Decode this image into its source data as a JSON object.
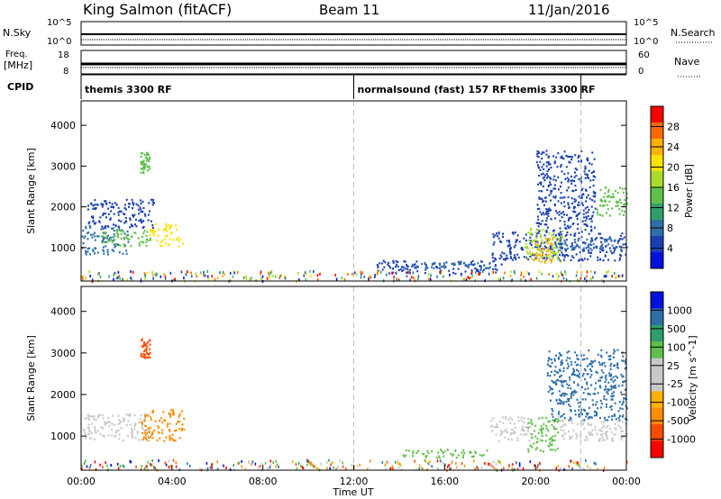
{
  "header": {
    "station": "King Salmon (fitACF)",
    "beam": "Beam 11",
    "date": "11/Jan/2016"
  },
  "aux_panels": {
    "nsky_label": "N.Sky",
    "nsky_ticks": [
      "10^5",
      "10^0"
    ],
    "nsearch_label": "N.Search",
    "nsearch_ticks": [
      "10^5",
      "10^0"
    ],
    "freq_label": "Freq.",
    "freq_unit": "[MHz]",
    "freq_ticks": [
      "18",
      "8"
    ],
    "nave_label": "Nave",
    "nave_ticks": [
      "60",
      "0"
    ],
    "cpid_label": "CPID",
    "cpid_segments": [
      {
        "start": 0,
        "end": 12,
        "label": "themis 3300 RF"
      },
      {
        "start": 12,
        "end": 22,
        "label": "normalsound (fast) 157 RF"
      },
      {
        "start": 22,
        "end": 24,
        "label": ""
      }
    ],
    "cpid_extra_label": {
      "x_hour": 18.8,
      "label": "themis 3300 RF"
    }
  },
  "chart_data": [
    {
      "type": "heatmap",
      "panel": "power",
      "xlabel": "",
      "ylabel": "Slant Range [km]",
      "xlim": [
        0,
        24
      ],
      "ylim": [
        180,
        4600
      ],
      "y_ticks": [
        1000,
        2000,
        3000,
        4000
      ],
      "colorbar_label": "Power [dB]",
      "colorbar_ticks": [
        "28",
        "24",
        "20",
        "16",
        "12",
        "8",
        "4"
      ],
      "colorbar_colors": [
        "#ff0000",
        "#ff6a00",
        "#ffb000",
        "#ffe200",
        "#a8dc2c",
        "#5fc04a",
        "#2f9f6a",
        "#2f6fa8",
        "#1a3fb5",
        "#0011dd"
      ],
      "dashed_time_markers": [
        12,
        22
      ],
      "regions": [
        {
          "t0": 0.0,
          "t1": 2.1,
          "r0": 850,
          "r1": 1550,
          "level": "medium",
          "color": "#2f6fa8"
        },
        {
          "t0": 0.8,
          "t1": 3.1,
          "r0": 1050,
          "r1": 1450,
          "level": "high",
          "color": "#5fc04a"
        },
        {
          "t0": 3.0,
          "t1": 4.5,
          "r0": 1050,
          "r1": 1600,
          "level": "medium",
          "color": "#ffe200"
        },
        {
          "t0": 2.6,
          "t1": 3.0,
          "r0": 2850,
          "r1": 3350,
          "level": "medium",
          "color": "#5fc04a"
        },
        {
          "t0": 0.2,
          "t1": 3.2,
          "r0": 1500,
          "r1": 2200,
          "level": "low",
          "color": "#1a3fb5"
        },
        {
          "t0": 0.0,
          "t1": 24.0,
          "r0": 200,
          "r1": 450,
          "level": "speckle",
          "color": "#2f9f6a"
        },
        {
          "t0": 13.0,
          "t1": 18.5,
          "r0": 380,
          "r1": 700,
          "level": "low",
          "color": "#1a3fb5"
        },
        {
          "t0": 14.5,
          "t1": 18.0,
          "r0": 500,
          "r1": 650,
          "level": "medium",
          "color": "#2f6fa8"
        },
        {
          "t0": 18.0,
          "t1": 24.0,
          "r0": 700,
          "r1": 1400,
          "level": "low",
          "color": "#1a3fb5"
        },
        {
          "t0": 19.5,
          "t1": 21.2,
          "r0": 650,
          "r1": 1500,
          "level": "high",
          "color": "#a8dc2c"
        },
        {
          "t0": 19.8,
          "t1": 20.8,
          "r0": 650,
          "r1": 1300,
          "level": "high",
          "color": "#ffb000"
        },
        {
          "t0": 20.8,
          "t1": 23.8,
          "r0": 950,
          "r1": 1250,
          "level": "medium",
          "color": "#2f6fa8"
        },
        {
          "t0": 20.0,
          "t1": 22.6,
          "r0": 1400,
          "r1": 3400,
          "level": "low",
          "color": "#1a3fb5"
        },
        {
          "t0": 22.6,
          "t1": 24.0,
          "r0": 1800,
          "r1": 2500,
          "level": "medium",
          "color": "#5fc04a"
        }
      ]
    },
    {
      "type": "heatmap",
      "panel": "velocity",
      "xlabel": "Time UT",
      "ylabel": "Slant Range [km]",
      "xlim": [
        0,
        24
      ],
      "ylim": [
        180,
        4600
      ],
      "x_ticks": [
        "00:00",
        "04:00",
        "08:00",
        "12:00",
        "16:00",
        "20:00",
        "00:00"
      ],
      "y_ticks": [
        1000,
        2000,
        3000,
        4000
      ],
      "colorbar_label": "Velocity [m s^-1]",
      "colorbar_ticks": [
        "1000",
        "500",
        "100",
        "25",
        "-25",
        "-100",
        "-500",
        "-1000"
      ],
      "colorbar_colors": [
        "#0011dd",
        "#2f6fa8",
        "#2f9f6a",
        "#5fc04a",
        "#c8c8c8",
        "#c8c8c8",
        "#ffb000",
        "#ff8c00",
        "#ff4a00",
        "#ff0000"
      ],
      "dashed_time_markers": [
        12,
        22
      ],
      "regions": [
        {
          "t0": 0.0,
          "t1": 3.0,
          "r0": 900,
          "r1": 1550,
          "level": "ground",
          "color": "#c8c8c8"
        },
        {
          "t0": 2.6,
          "t1": 4.5,
          "r0": 900,
          "r1": 1650,
          "level": "negative",
          "color": "#ff8c00"
        },
        {
          "t0": 2.6,
          "t1": 3.0,
          "r0": 2900,
          "r1": 3400,
          "level": "negative",
          "color": "#ff4a00"
        },
        {
          "t0": 0.0,
          "t1": 24.0,
          "r0": 200,
          "r1": 450,
          "level": "speckle",
          "color": "#ffb000"
        },
        {
          "t0": 14.0,
          "t1": 18.0,
          "r0": 500,
          "r1": 700,
          "level": "positive",
          "color": "#5fc04a"
        },
        {
          "t0": 18.0,
          "t1": 19.8,
          "r0": 900,
          "r1": 1500,
          "level": "ground",
          "color": "#c8c8c8"
        },
        {
          "t0": 19.6,
          "t1": 21.0,
          "r0": 650,
          "r1": 1500,
          "level": "positive",
          "color": "#5fc04a"
        },
        {
          "t0": 21.0,
          "t1": 24.0,
          "r0": 900,
          "r1": 1400,
          "level": "ground",
          "color": "#c8c8c8"
        },
        {
          "t0": 20.5,
          "t1": 24.0,
          "r0": 1400,
          "r1": 3100,
          "level": "mixed",
          "color": "#2f6fa8"
        }
      ]
    }
  ]
}
